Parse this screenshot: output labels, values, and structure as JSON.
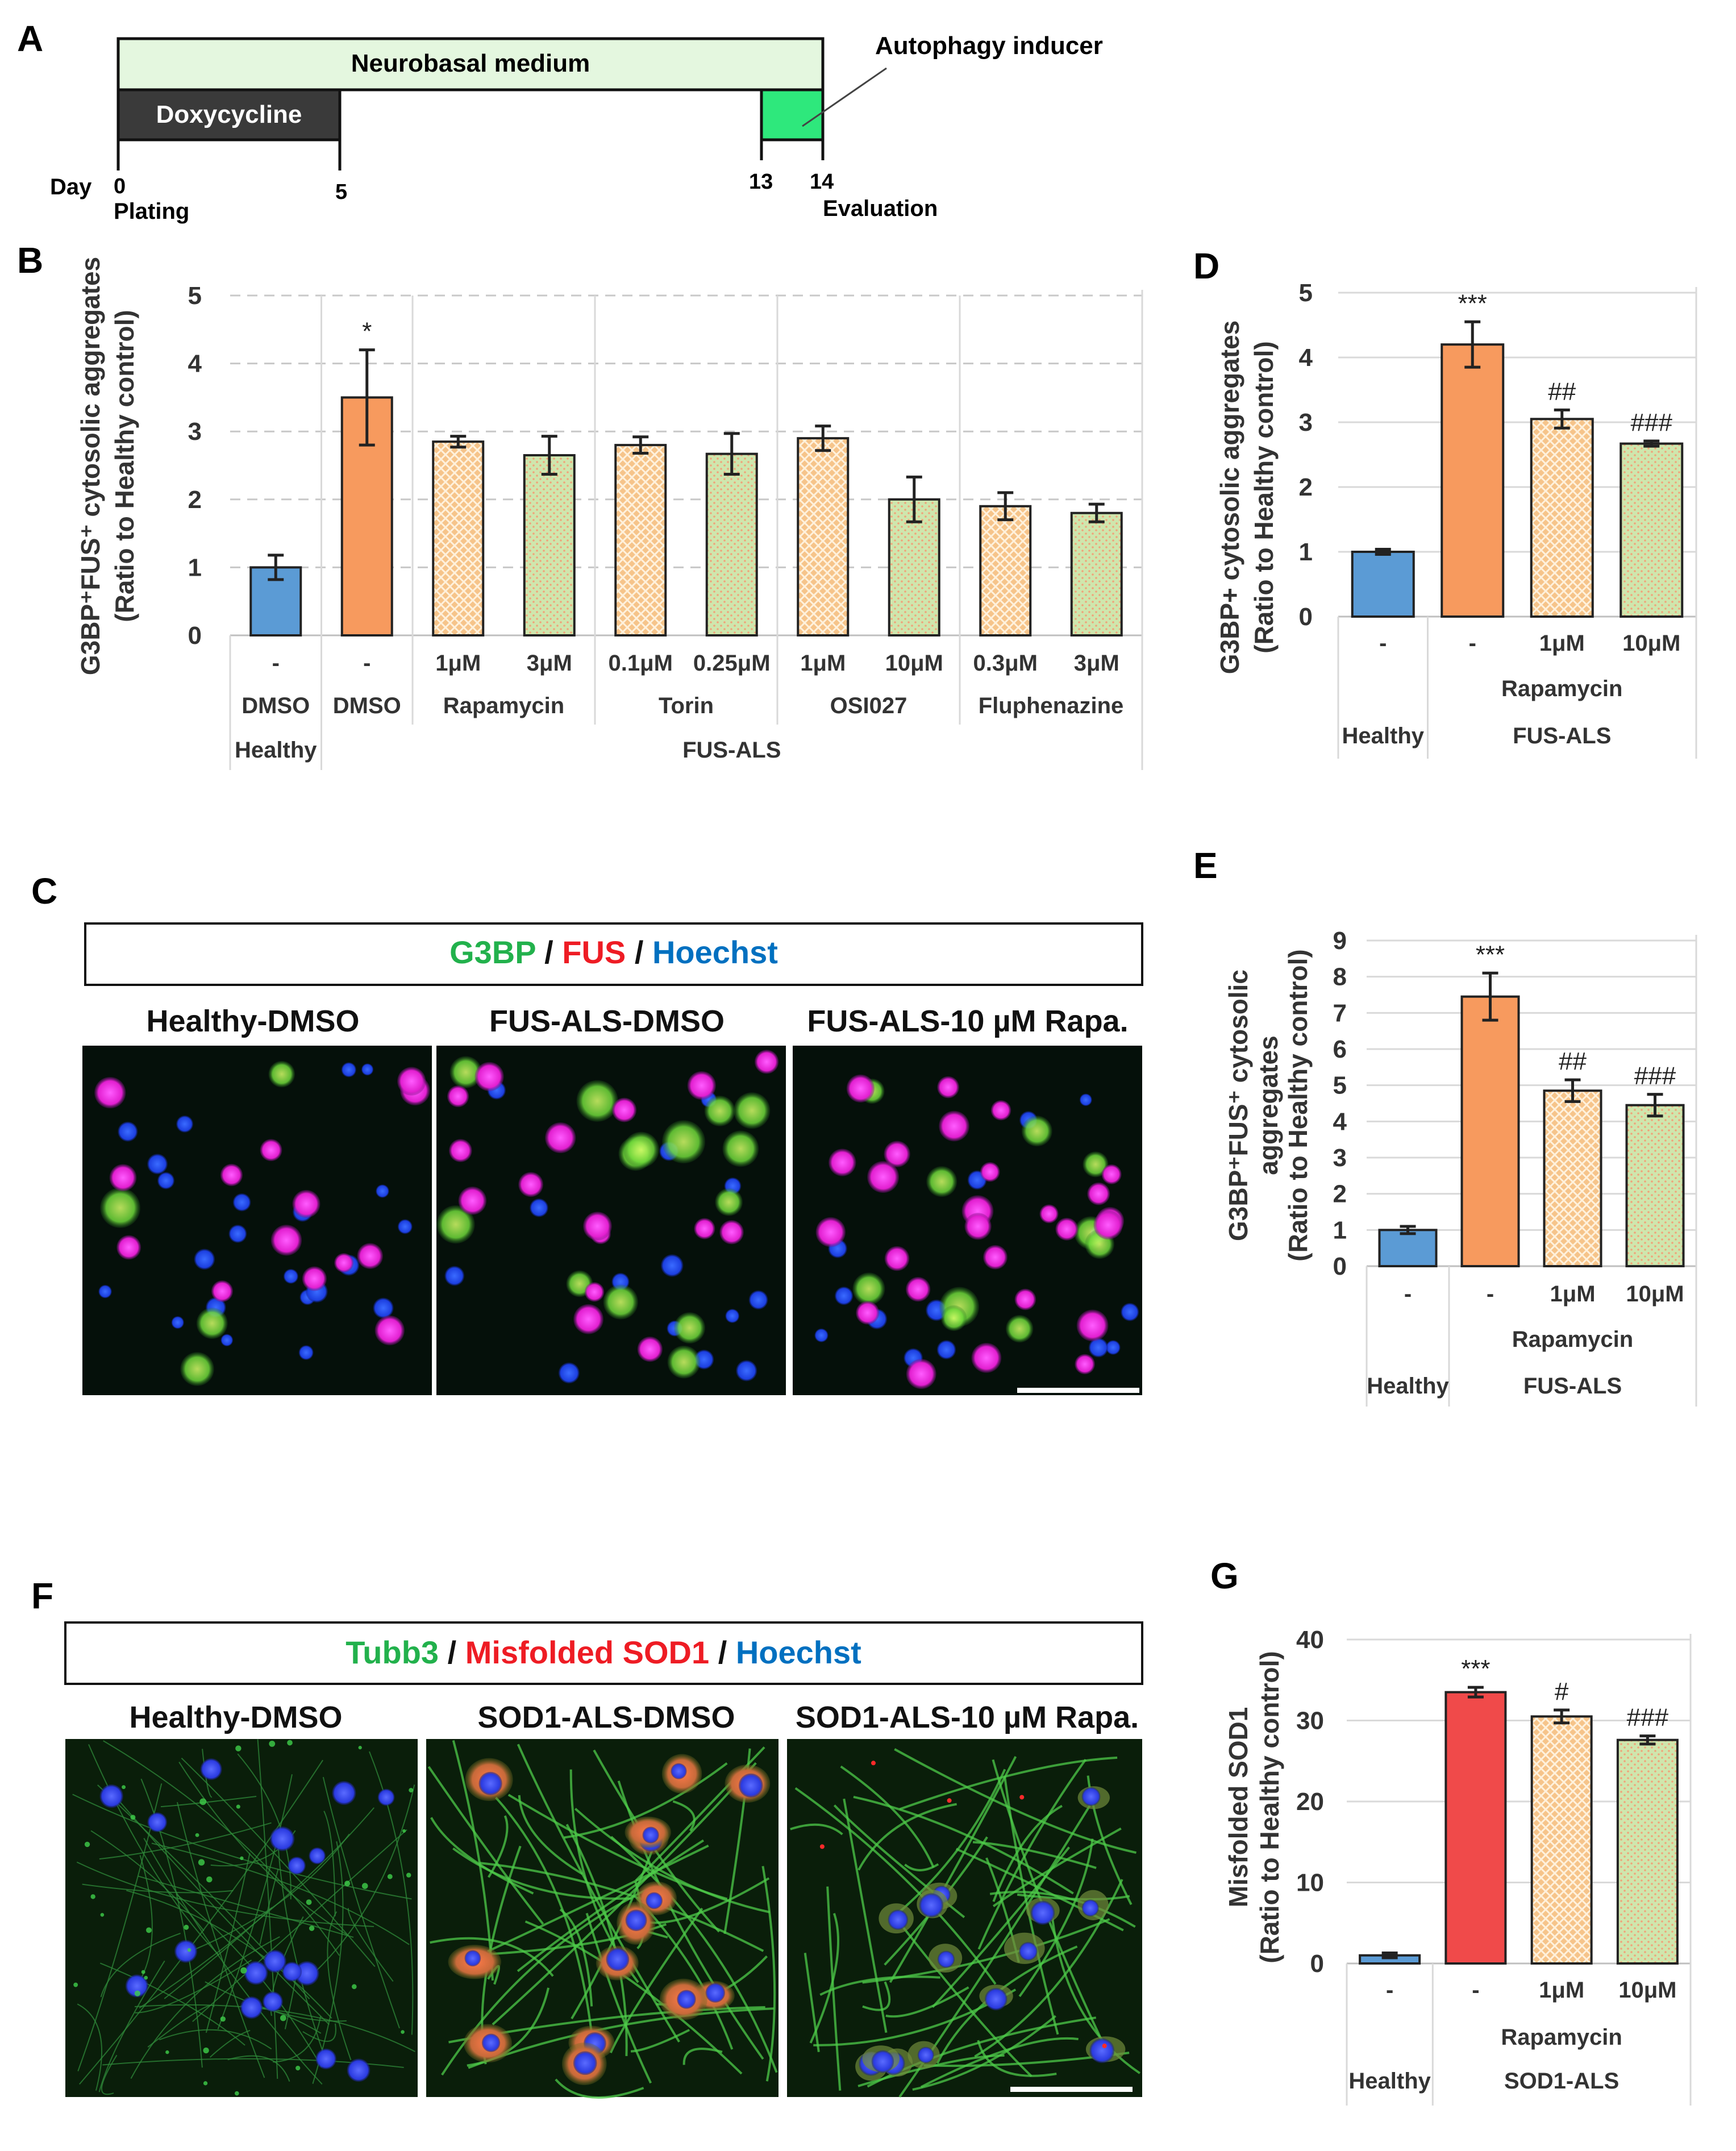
{
  "colors": {
    "healthy": "#5b9bd5",
    "fus_dmso": "#f79a5e",
    "sod1_dmso": "#f04a4a",
    "orange_hatch": "#f6c48a",
    "green_hatch": "#cfe6ad",
    "medium": "#e4f7df",
    "doxy": "#3a3a3a",
    "inducer": "#2ee87c",
    "g3bp": "#22b14c",
    "fus": "#ee1c24",
    "hoechst": "#0070c0"
  },
  "panels": {
    "A": "A",
    "B": "B",
    "C": "C",
    "D": "D",
    "E": "E",
    "F": "F",
    "G": "G"
  },
  "timeline": {
    "medium": "Neurobasal medium",
    "doxycycline": "Doxycycline",
    "inducer": "Autophagy inducer",
    "day": "Day",
    "d0": "0",
    "d5": "5",
    "d13": "13",
    "d14": "14",
    "plating": "Plating",
    "evaluation": "Evaluation"
  },
  "microscopy_C": {
    "legend": {
      "g3bp": "G3BP",
      "sep": " / ",
      "fus": "FUS",
      "hoechst": "Hoechst"
    },
    "titles": [
      "Healthy-DMSO",
      "FUS-ALS-DMSO",
      "FUS-ALS-10 µM Rapa."
    ]
  },
  "microscopy_F": {
    "legend": {
      "tubb3": "Tubb3",
      "sep": " / ",
      "sod1": "Misfolded SOD1",
      "hoechst": "Hoechst"
    },
    "titles": [
      "Healthy-DMSO",
      "SOD1-ALS-DMSO",
      "SOD1-ALS-10 µM Rapa."
    ]
  },
  "chart_data": [
    {
      "panel": "B",
      "type": "bar",
      "ylabel": [
        "G3BP⁺FUS⁺ cytosolic aggregates",
        "(Ratio to Healthy control)"
      ],
      "ylim": [
        0,
        5
      ],
      "yticks": [
        0,
        1,
        2,
        3,
        4,
        5
      ],
      "grid": true,
      "values": [
        1.0,
        3.5,
        2.85,
        2.65,
        2.8,
        2.67,
        2.9,
        2.0,
        1.9,
        1.8
      ],
      "errors": [
        0.18,
        0.7,
        0.08,
        0.28,
        0.12,
        0.3,
        0.18,
        0.33,
        0.2,
        0.13
      ],
      "fills": [
        "healthy",
        "fus_dmso",
        "orange_hatch",
        "green_hatch",
        "orange_hatch",
        "green_hatch",
        "orange_hatch",
        "green_hatch",
        "orange_hatch",
        "green_hatch"
      ],
      "significance": [
        "",
        "*",
        "",
        "",
        "",
        "",
        "",
        "",
        "",
        ""
      ],
      "row1": [
        "-",
        "-",
        "1μM",
        "3μM",
        "0.1μM",
        "0.25μM",
        "1μM",
        "10μM",
        "0.3μM",
        "3μM"
      ],
      "row2": [
        "DMSO",
        "DMSO",
        "Rapamycin",
        "Torin",
        "OSI027",
        "Fluphenazine"
      ],
      "row3": [
        "Healthy",
        "FUS-ALS"
      ]
    },
    {
      "panel": "D",
      "type": "bar",
      "ylabel": [
        "G3BP+ cytosolic aggregates",
        "(Ratio to Healthy control)"
      ],
      "ylim": [
        0,
        5
      ],
      "yticks": [
        0,
        1,
        2,
        3,
        4,
        5
      ],
      "values": [
        1.0,
        4.2,
        3.05,
        2.67
      ],
      "errors": [
        0.04,
        0.35,
        0.14,
        0.04
      ],
      "fills": [
        "healthy",
        "fus_dmso",
        "orange_hatch",
        "green_hatch"
      ],
      "significance": [
        "",
        "***",
        "##",
        "###"
      ],
      "row1": [
        "-",
        "-",
        "1μM",
        "10μM"
      ],
      "row2": [
        "Rapamycin"
      ],
      "row3": [
        "Healthy",
        "FUS-ALS"
      ]
    },
    {
      "panel": "E",
      "type": "bar",
      "ylabel": [
        "G3BP⁺FUS⁺ cytosolic",
        "aggregates",
        "(Ratio to Healthy control)"
      ],
      "ylim": [
        0,
        9
      ],
      "yticks": [
        0,
        1,
        2,
        3,
        4,
        5,
        6,
        7,
        8,
        9
      ],
      "values": [
        1.0,
        7.45,
        4.85,
        4.45
      ],
      "errors": [
        0.1,
        0.65,
        0.3,
        0.3
      ],
      "fills": [
        "healthy",
        "fus_dmso",
        "orange_hatch",
        "green_hatch"
      ],
      "significance": [
        "",
        "***",
        "##",
        "###"
      ],
      "row1": [
        "-",
        "-",
        "1μM",
        "10μM"
      ],
      "row2": [
        "Rapamycin"
      ],
      "row3": [
        "Healthy",
        "FUS-ALS"
      ]
    },
    {
      "panel": "G",
      "type": "bar",
      "ylabel": [
        "Misfolded  SOD1",
        "(Ratio to Healthy control)"
      ],
      "ylim": [
        0,
        40
      ],
      "yticks": [
        0,
        10,
        20,
        30,
        40
      ],
      "values": [
        1.0,
        33.5,
        30.5,
        27.6
      ],
      "errors": [
        0.3,
        0.6,
        0.8,
        0.5
      ],
      "fills": [
        "healthy",
        "sod1_dmso",
        "orange_hatch",
        "green_hatch"
      ],
      "significance": [
        "",
        "***",
        "#",
        "###"
      ],
      "row1": [
        "-",
        "-",
        "1μM",
        "10μM"
      ],
      "row2": [
        "Rapamycin"
      ],
      "row3": [
        "Healthy",
        "SOD1-ALS"
      ]
    }
  ]
}
